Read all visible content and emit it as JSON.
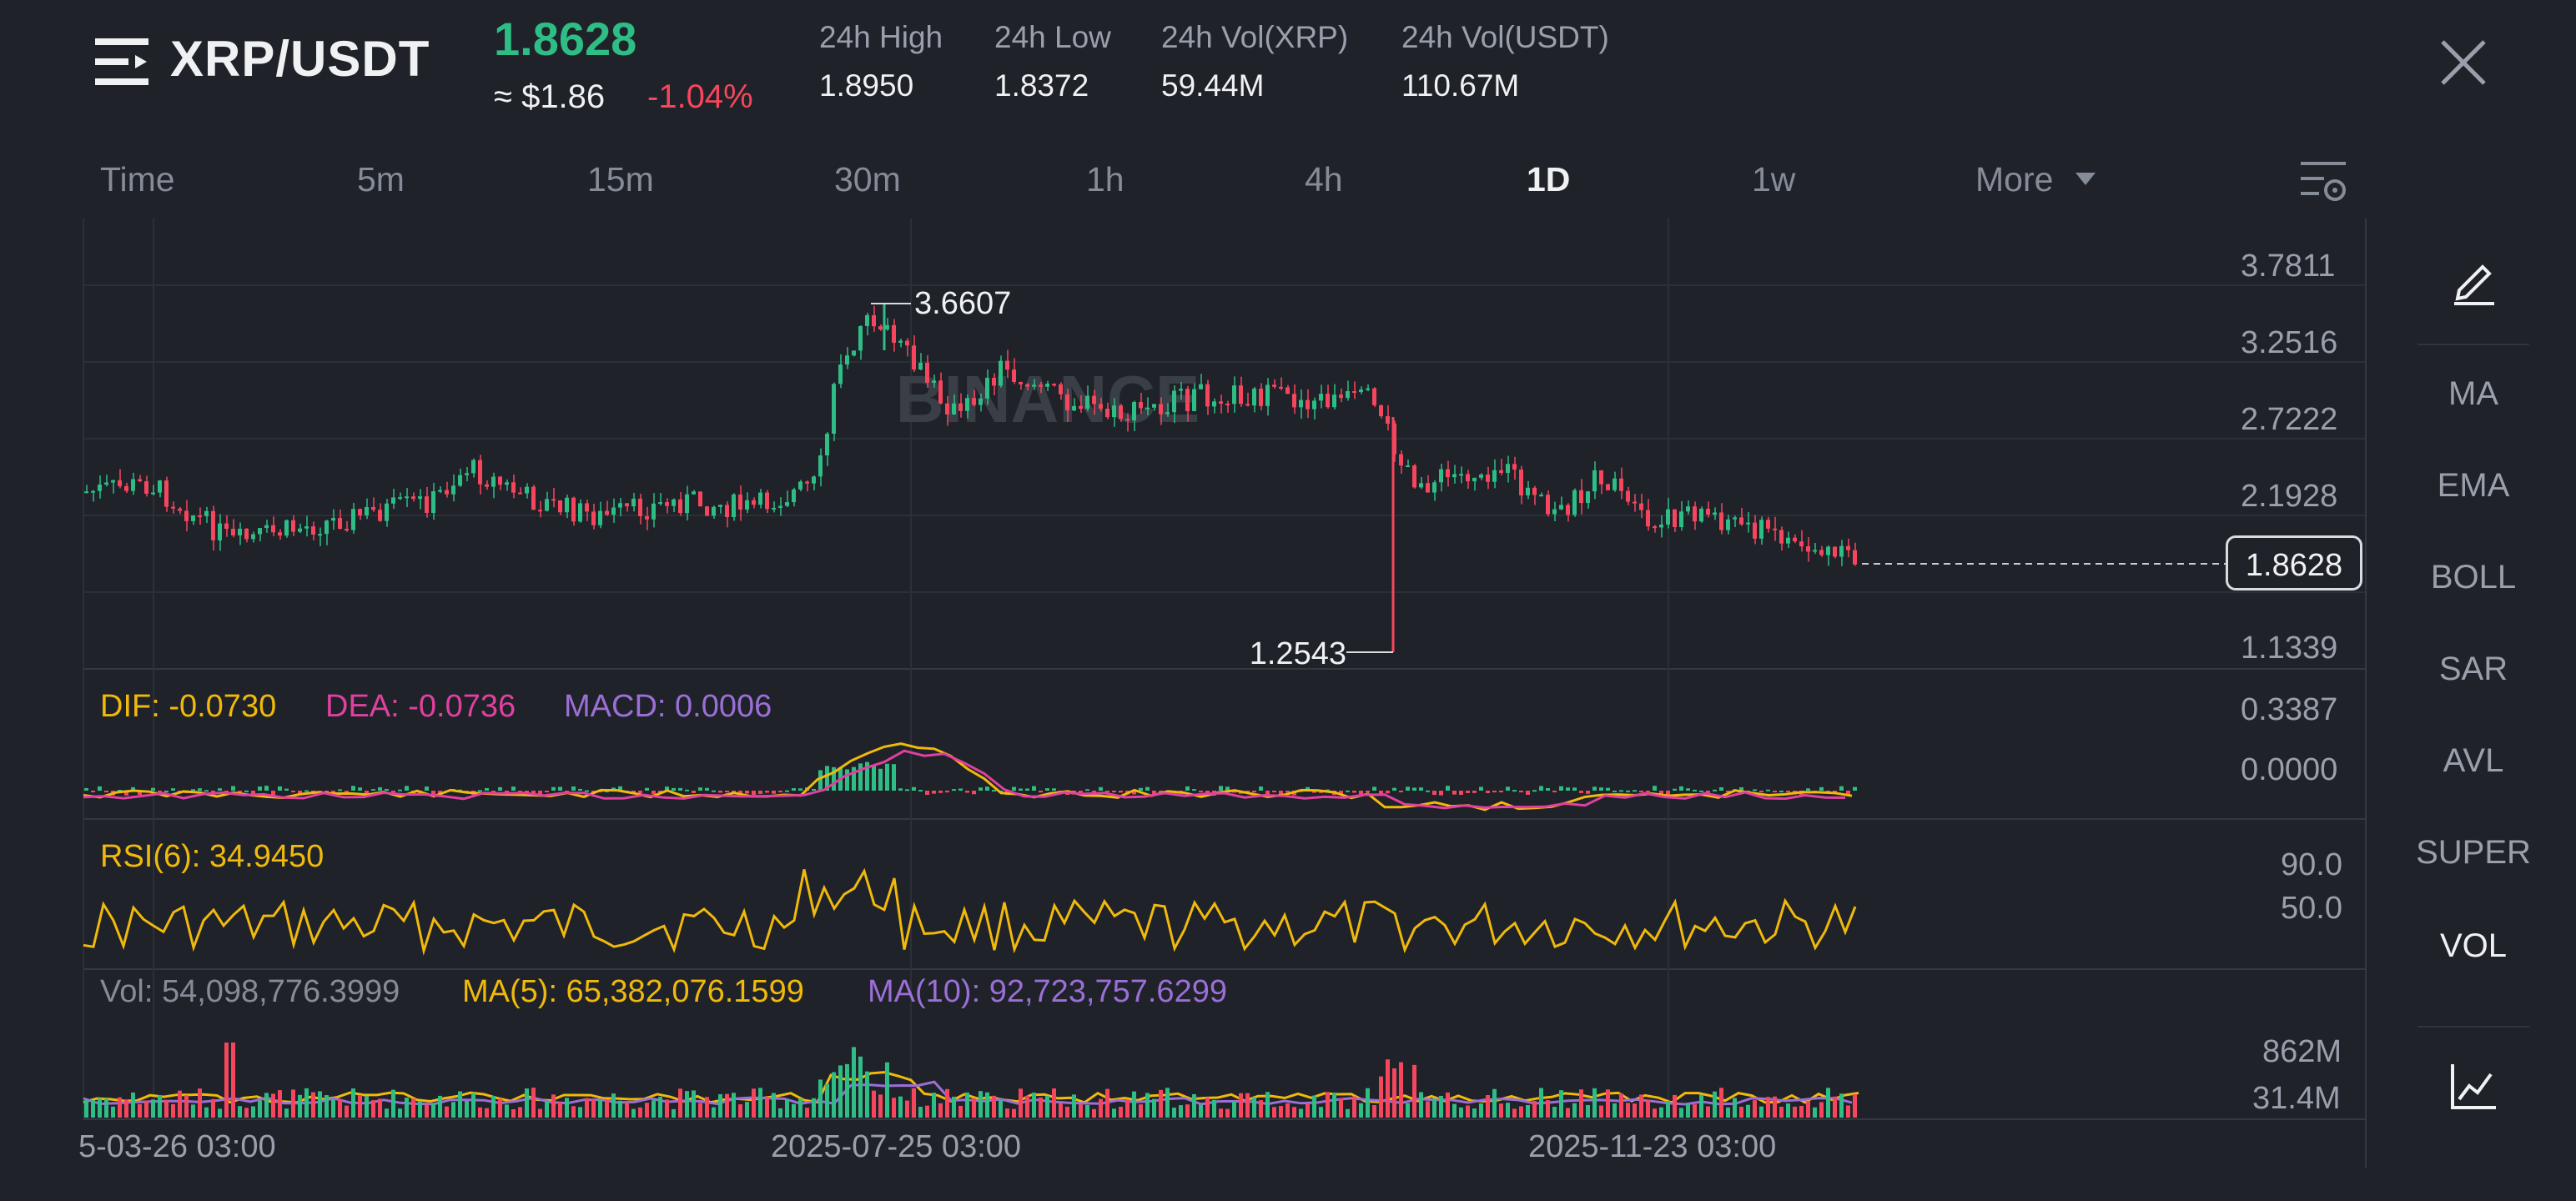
{
  "header": {
    "pair": "XRP/USDT",
    "price": "1.8628",
    "approx_usd": "≈ $1.86",
    "change_pct": "-1.04%",
    "stats": [
      {
        "label": "24h High",
        "value": "1.8950"
      },
      {
        "label": "24h Low",
        "value": "1.8372"
      },
      {
        "label": "24h Vol(XRP)",
        "value": "59.44M"
      },
      {
        "label": "24h Vol(USDT)",
        "value": "110.67M"
      }
    ]
  },
  "timeframes": {
    "items": [
      "Time",
      "5m",
      "15m",
      "30m",
      "1h",
      "4h",
      "1D",
      "1w"
    ],
    "active": "1D",
    "more_label": "More"
  },
  "price_axis": [
    "3.7811",
    "3.2516",
    "2.7222",
    "2.1928",
    "1.1339"
  ],
  "current_price_tag": "1.8628",
  "annotations": {
    "high": "3.6607",
    "low": "1.2543"
  },
  "watermark": "BINANCE",
  "macd": {
    "dif": "DIF: -0.0730",
    "dea": "DEA: -0.0736",
    "macd": "MACD: 0.0006",
    "axis": [
      "0.3387",
      "0.0000"
    ]
  },
  "rsi": {
    "label": "RSI(6): 34.9450",
    "axis": [
      "90.0",
      "50.0"
    ]
  },
  "volume": {
    "vol": "Vol: 54,098,776.3999",
    "ma5": "MA(5): 65,382,076.1599",
    "ma10": "MA(10): 92,723,757.6299",
    "axis": [
      "862M",
      "31.4M"
    ]
  },
  "dates": [
    "5-03-26 03:00",
    "2025-07-25 03:00",
    "2025-11-23 03:00"
  ],
  "side_panel": {
    "items": [
      "MA",
      "EMA",
      "BOLL",
      "SAR",
      "AVL",
      "SUPER",
      "VOL"
    ],
    "active": "VOL"
  },
  "colors": {
    "up": "#2ebd85",
    "down": "#f6465d",
    "dif": "#f0b90b",
    "dea": "#e040a0",
    "macd": "#9b6fd6",
    "ma5": "#f0b90b",
    "ma10": "#9b6fd6"
  }
}
